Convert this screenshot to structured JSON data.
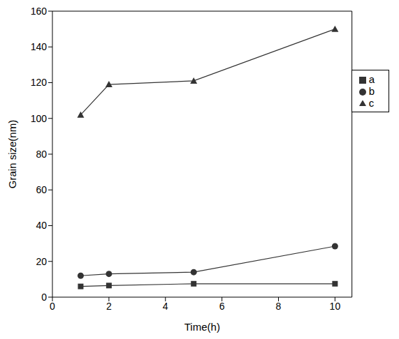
{
  "chart_data": {
    "type": "line",
    "x_label": "Time(h)",
    "y_label": "Grain size(nm)",
    "xlim": [
      0,
      10.6
    ],
    "xticks": [
      0,
      2,
      4,
      6,
      8,
      10
    ],
    "ylim": [
      0,
      160
    ],
    "yticks": [
      0,
      20,
      40,
      60,
      80,
      100,
      120,
      140,
      160
    ],
    "grid": false,
    "legend": "right",
    "series": [
      {
        "name": "a",
        "color": "#333333",
        "marker": "square",
        "x": [
          1,
          2,
          5,
          10
        ],
        "values": [
          6,
          6.5,
          7.5,
          7.5
        ]
      },
      {
        "name": "b",
        "color": "#333333",
        "marker": "circle",
        "x": [
          1,
          2,
          5,
          10
        ],
        "values": [
          12,
          13,
          14,
          28.5
        ]
      },
      {
        "name": "c",
        "color": "#333333",
        "marker": "triangle",
        "x": [
          1,
          2,
          5,
          10
        ],
        "values": [
          102,
          119,
          121,
          150
        ]
      }
    ]
  }
}
